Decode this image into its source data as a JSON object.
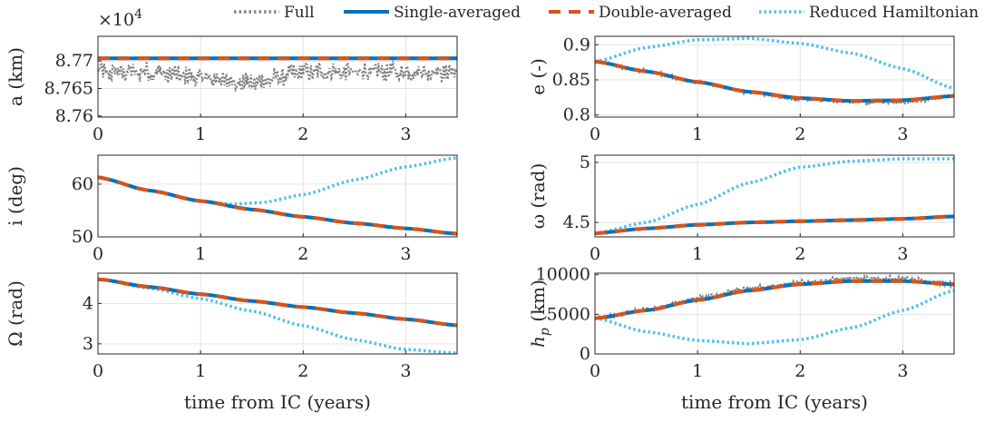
{
  "legend": [
    {
      "name": "Full",
      "color": "#808080",
      "style": "dotted"
    },
    {
      "name": "Single-averaged",
      "color": "#0072BD",
      "style": "solid"
    },
    {
      "name": "Double-averaged",
      "color": "#D95319",
      "style": "dashed"
    },
    {
      "name": "Reduced Hamiltonian",
      "color": "#4DBEEE",
      "style": "dotted"
    }
  ],
  "chart_data": [
    {
      "type": "line",
      "ylabel": "a (km)",
      "xlabel": "",
      "exponent_label": "×10",
      "exponent_power": "4",
      "xlim": [
        0,
        3.5
      ],
      "ylim": [
        8.7598,
        8.7745
      ],
      "xticks": [
        0,
        1,
        2,
        3
      ],
      "xticklabels": [
        "0",
        "1",
        "2",
        "3"
      ],
      "yticks": [
        8.76,
        8.765,
        8.77
      ],
      "yticklabels": [
        "8.76",
        "8.765",
        "8.77"
      ],
      "series": [
        {
          "name": "Full",
          "x": [
            0,
            0.5,
            1,
            1.5,
            2,
            2.5,
            3,
            3.5
          ],
          "y": [
            8.768,
            8.768,
            8.767,
            8.766,
            8.768,
            8.768,
            8.768,
            8.768
          ],
          "noise": 0.0022
        },
        {
          "name": "Single-averaged",
          "x": [
            0,
            3.5
          ],
          "y": [
            8.7705,
            8.7705
          ]
        },
        {
          "name": "Double-averaged",
          "x": [
            0,
            3.5
          ],
          "y": [
            8.7705,
            8.7705
          ]
        }
      ]
    },
    {
      "type": "line",
      "ylabel": "e (-)",
      "xlabel": "",
      "xlim": [
        0,
        3.5
      ],
      "ylim": [
        0.797,
        0.912
      ],
      "xticks": [
        0,
        1,
        2,
        3
      ],
      "xticklabels": [
        "0",
        "1",
        "2",
        "3"
      ],
      "yticks": [
        0.8,
        0.85,
        0.9
      ],
      "yticklabels": [
        "0.8",
        "0.85",
        "0.9"
      ],
      "series": [
        {
          "name": "Full",
          "x": [
            0,
            0.5,
            1,
            1.5,
            2,
            2.5,
            3,
            3.5
          ],
          "y": [
            0.876,
            0.862,
            0.846,
            0.832,
            0.822,
            0.818,
            0.818,
            0.826
          ],
          "noise": 0.003
        },
        {
          "name": "Single-averaged",
          "x": [
            0,
            0.5,
            1,
            1.5,
            2,
            2.5,
            3,
            3.5
          ],
          "y": [
            0.876,
            0.862,
            0.847,
            0.833,
            0.824,
            0.82,
            0.821,
            0.827
          ]
        },
        {
          "name": "Double-averaged",
          "x": [
            0,
            0.5,
            1,
            1.5,
            2,
            2.5,
            3,
            3.5
          ],
          "y": [
            0.876,
            0.862,
            0.847,
            0.833,
            0.824,
            0.82,
            0.821,
            0.827
          ]
        },
        {
          "name": "Reduced Hamiltonian",
          "x": [
            0,
            0.5,
            1,
            1.5,
            2,
            2.5,
            3,
            3.5
          ],
          "y": [
            0.876,
            0.896,
            0.907,
            0.909,
            0.902,
            0.888,
            0.866,
            0.838
          ]
        }
      ]
    },
    {
      "type": "line",
      "ylabel": "i (deg)",
      "xlabel": "",
      "xlim": [
        0,
        3.5
      ],
      "ylim": [
        50,
        65.5
      ],
      "xticks": [
        0,
        1,
        2,
        3
      ],
      "xticklabels": [
        "0",
        "1",
        "2",
        "3"
      ],
      "yticks": [
        50,
        60
      ],
      "yticklabels": [
        "50",
        "60"
      ],
      "series": [
        {
          "name": "Full",
          "x": [
            0,
            0.5,
            1,
            1.5,
            2,
            2.5,
            3,
            3.5
          ],
          "y": [
            61.3,
            58.8,
            56.8,
            55.2,
            53.8,
            52.6,
            51.6,
            50.6
          ]
        },
        {
          "name": "Single-averaged",
          "x": [
            0,
            0.5,
            1,
            1.5,
            2,
            2.5,
            3,
            3.5
          ],
          "y": [
            61.3,
            58.8,
            56.8,
            55.2,
            53.8,
            52.6,
            51.6,
            50.6
          ]
        },
        {
          "name": "Double-averaged",
          "x": [
            0,
            0.5,
            1,
            1.5,
            2,
            2.5,
            3,
            3.5
          ],
          "y": [
            61.3,
            58.8,
            56.8,
            55.2,
            53.8,
            52.6,
            51.6,
            50.6
          ]
        },
        {
          "name": "Reduced Hamiltonian",
          "x": [
            0,
            0.5,
            1,
            1.3,
            1.6,
            2,
            2.5,
            3,
            3.5
          ],
          "y": [
            61.3,
            58.8,
            56.8,
            56.2,
            56.5,
            58.0,
            60.8,
            63.3,
            65.0
          ]
        }
      ]
    },
    {
      "type": "line",
      "ylabel": "ω (rad)",
      "xlabel": "",
      "xlim": [
        0,
        3.5
      ],
      "ylim": [
        4.38,
        5.06
      ],
      "xticks": [
        0,
        1,
        2,
        3
      ],
      "xticklabels": [
        "0",
        "1",
        "2",
        "3"
      ],
      "yticks": [
        4.5,
        5
      ],
      "yticklabels": [
        "4.5",
        "5"
      ],
      "series": [
        {
          "name": "Full",
          "x": [
            0,
            0.5,
            1,
            1.5,
            2,
            2.5,
            3,
            3.5
          ],
          "y": [
            4.41,
            4.45,
            4.48,
            4.5,
            4.51,
            4.52,
            4.53,
            4.55
          ]
        },
        {
          "name": "Single-averaged",
          "x": [
            0,
            0.5,
            1,
            1.5,
            2,
            2.5,
            3,
            3.5
          ],
          "y": [
            4.41,
            4.45,
            4.48,
            4.5,
            4.51,
            4.52,
            4.53,
            4.55
          ]
        },
        {
          "name": "Double-averaged",
          "x": [
            0,
            0.5,
            1,
            1.5,
            2,
            2.5,
            3,
            3.5
          ],
          "y": [
            4.41,
            4.45,
            4.48,
            4.5,
            4.51,
            4.52,
            4.53,
            4.55
          ]
        },
        {
          "name": "Reduced Hamiltonian",
          "x": [
            0,
            0.5,
            1,
            1.5,
            2,
            2.5,
            3,
            3.5
          ],
          "y": [
            4.41,
            4.5,
            4.65,
            4.83,
            4.96,
            5.01,
            5.03,
            5.03
          ]
        }
      ]
    },
    {
      "type": "line",
      "ylabel": "Ω (rad)",
      "xlabel": "time from IC (years)",
      "xlim": [
        0,
        3.5
      ],
      "ylim": [
        2.75,
        4.75
      ],
      "xticks": [
        0,
        1,
        2,
        3
      ],
      "xticklabels": [
        "0",
        "1",
        "2",
        "3"
      ],
      "yticks": [
        3,
        4
      ],
      "yticklabels": [
        "3",
        "4"
      ],
      "series": [
        {
          "name": "Full",
          "x": [
            0,
            0.5,
            1,
            1.5,
            2,
            2.5,
            3,
            3.5
          ],
          "y": [
            4.6,
            4.41,
            4.23,
            4.06,
            3.91,
            3.76,
            3.61,
            3.46
          ]
        },
        {
          "name": "Single-averaged",
          "x": [
            0,
            0.5,
            1,
            1.5,
            2,
            2.5,
            3,
            3.5
          ],
          "y": [
            4.6,
            4.41,
            4.23,
            4.06,
            3.91,
            3.76,
            3.61,
            3.46
          ]
        },
        {
          "name": "Double-averaged",
          "x": [
            0,
            0.5,
            1,
            1.5,
            2,
            2.5,
            3,
            3.5
          ],
          "y": [
            4.6,
            4.41,
            4.23,
            4.06,
            3.91,
            3.76,
            3.61,
            3.46
          ]
        },
        {
          "name": "Reduced Hamiltonian",
          "x": [
            0,
            0.5,
            1,
            1.5,
            2,
            2.5,
            3,
            3.5
          ],
          "y": [
            4.6,
            4.38,
            4.12,
            3.81,
            3.45,
            3.1,
            2.86,
            2.77
          ]
        }
      ]
    },
    {
      "type": "line",
      "ylabel": "h",
      "ylabel_sub": "p",
      "ylabel_unit": " (km)",
      "xlabel": "time from IC (years)",
      "xlim": [
        0,
        3.5
      ],
      "ylim": [
        0,
        10200
      ],
      "xticks": [
        0,
        1,
        2,
        3
      ],
      "xticklabels": [
        "0",
        "1",
        "2",
        "3"
      ],
      "yticks": [
        0,
        5000,
        10000
      ],
      "yticklabels": [
        "0",
        "5000",
        "10000"
      ],
      "series": [
        {
          "name": "Full",
          "x": [
            0,
            0.5,
            1,
            1.5,
            2,
            2.5,
            3,
            3.5
          ],
          "y": [
            4500,
            5600,
            7000,
            8300,
            9000,
            9600,
            9500,
            8800
          ],
          "noise": 350
        },
        {
          "name": "Single-averaged",
          "x": [
            0,
            0.5,
            1,
            1.5,
            2,
            2.5,
            3,
            3.5
          ],
          "y": [
            4500,
            5500,
            6800,
            8000,
            8800,
            9200,
            9200,
            8800
          ]
        },
        {
          "name": "Double-averaged",
          "x": [
            0,
            0.5,
            1,
            1.5,
            2,
            2.5,
            3,
            3.5
          ],
          "y": [
            4500,
            5500,
            6800,
            8000,
            8800,
            9200,
            9200,
            8800
          ]
        },
        {
          "name": "Reduced Hamiltonian",
          "x": [
            0,
            0.5,
            1,
            1.5,
            2,
            2.5,
            3,
            3.5
          ],
          "y": [
            4500,
            2800,
            1700,
            1300,
            1800,
            3300,
            5500,
            8000
          ]
        }
      ]
    }
  ]
}
